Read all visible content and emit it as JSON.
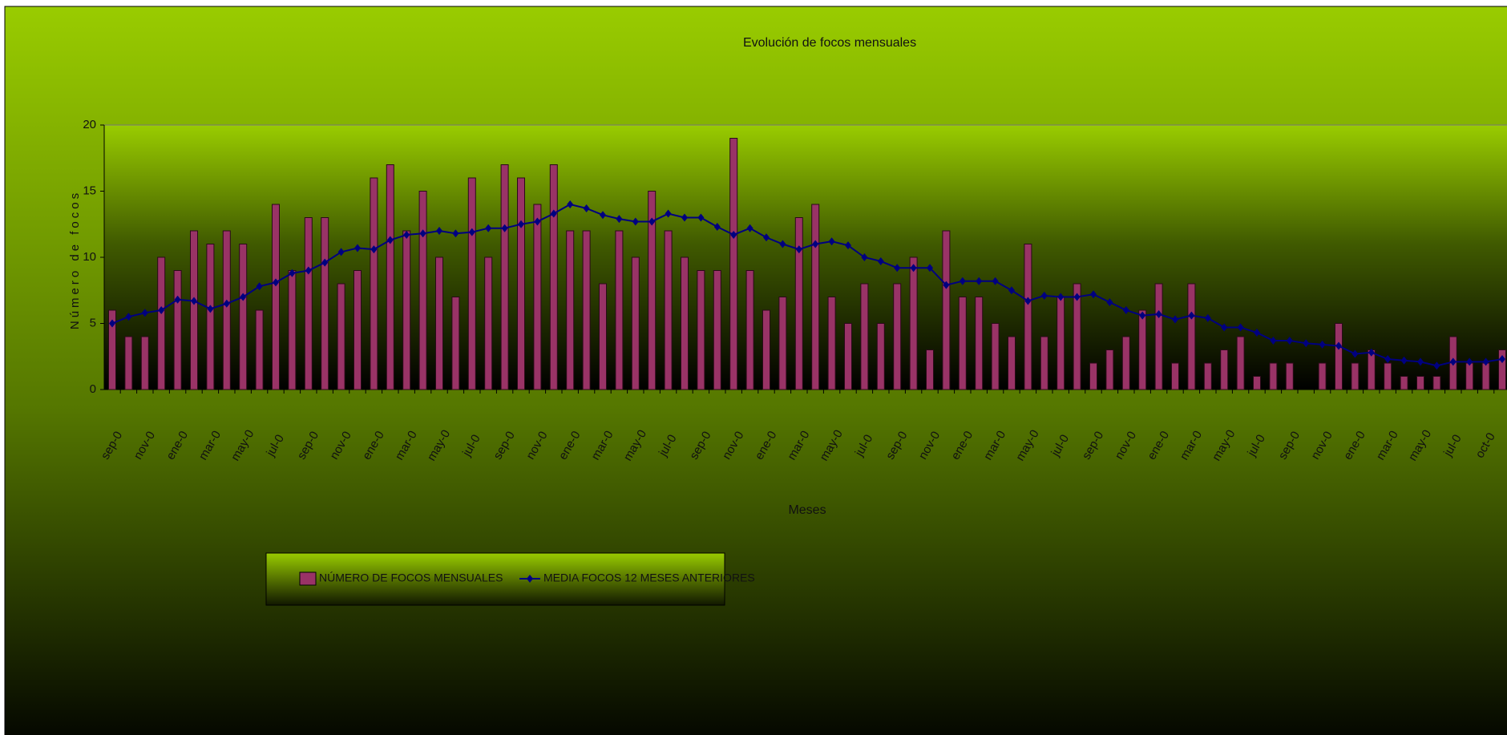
{
  "chart_data": {
    "type": "bar_line",
    "title": "Evolución de focos mensuales",
    "x_label": "Meses",
    "y_label": "Número de focos",
    "categories": [
      "sep-0",
      null,
      "nov-0",
      null,
      "ene-0",
      null,
      "mar-0",
      null,
      "may-0",
      null,
      "jul-0",
      null,
      "sep-0",
      null,
      "nov-0",
      null,
      "ene-0",
      null,
      "mar-0",
      null,
      "may-0",
      null,
      "jul-0",
      null,
      "sep-0",
      null,
      "nov-0",
      null,
      "ene-0",
      null,
      "mar-0",
      null,
      "may-0",
      null,
      "jul-0",
      null,
      "sep-0",
      null,
      "nov-0",
      null,
      "ene-0",
      null,
      "mar-0",
      null,
      "may-0",
      null,
      "jul-0",
      null,
      "sep-0",
      null,
      "nov-0",
      null,
      "ene-0",
      null,
      "mar-0",
      null,
      "may-0",
      null,
      "jul-0",
      null,
      "sep-0",
      null,
      "nov-0",
      null,
      "ene-0",
      null,
      "mar-0",
      null,
      "may-0",
      null,
      "jul-0",
      null,
      "sep-0",
      null,
      "nov-0",
      null,
      "ene-0",
      null,
      "mar-0",
      null,
      "may-0",
      null,
      "jul-0",
      null,
      "oct-0",
      null
    ],
    "series": [
      {
        "name": "NÚMERO DE FOCOS MENSUALES",
        "type": "bar",
        "color": "#993366",
        "values": [
          6,
          4,
          4,
          10,
          9,
          12,
          11,
          12,
          11,
          6,
          14,
          9,
          13,
          13,
          8,
          9,
          16,
          17,
          12,
          15,
          10,
          7,
          16,
          10,
          17,
          16,
          14,
          17,
          12,
          12,
          8,
          12,
          10,
          15,
          12,
          10,
          9,
          9,
          19,
          9,
          6,
          7,
          13,
          14,
          7,
          5,
          8,
          5,
          8,
          10,
          3,
          12,
          7,
          7,
          5,
          4,
          11,
          4,
          7,
          8,
          2,
          3,
          4,
          6,
          8,
          2,
          8,
          2,
          3,
          4,
          1,
          2,
          2,
          0,
          2,
          5,
          2,
          3,
          2,
          1,
          1,
          1,
          4,
          2,
          2,
          3
        ]
      },
      {
        "name": "MEDIA FOCOS 12 MESES ANTERIORES",
        "type": "line",
        "color": "#000080",
        "values": [
          5,
          5.5,
          5.8,
          6,
          6.8,
          6.7,
          6.1,
          6.5,
          7,
          7.8,
          8.1,
          8.8,
          9,
          9.6,
          10.4,
          10.7,
          10.6,
          11.3,
          11.7,
          11.8,
          12,
          11.8,
          11.9,
          12.2,
          12.2,
          12.5,
          12.7,
          13.3,
          14,
          13.7,
          13.2,
          12.9,
          12.7,
          12.7,
          13.3,
          13,
          13,
          12.3,
          11.7,
          12.2,
          11.5,
          11,
          10.6,
          11,
          11.2,
          10.9,
          10,
          9.7,
          9.2,
          9.2,
          9.2,
          7.9,
          8.2,
          8.2,
          8.2,
          7.5,
          6.7,
          7.1,
          7,
          7,
          7.2,
          6.6,
          6,
          5.6,
          5.7,
          5.3,
          5.6,
          5.4,
          4.7,
          4.7,
          4.3,
          3.7,
          3.7,
          3.5,
          3.4,
          3.3,
          2.7,
          2.8,
          2.3,
          2.2,
          2.1,
          1.8,
          2.1,
          2.1,
          2.1,
          2.3
        ]
      }
    ],
    "ylim": [
      0,
      20
    ],
    "yticks": [
      0,
      5,
      10,
      15,
      20
    ],
    "grid": false
  }
}
